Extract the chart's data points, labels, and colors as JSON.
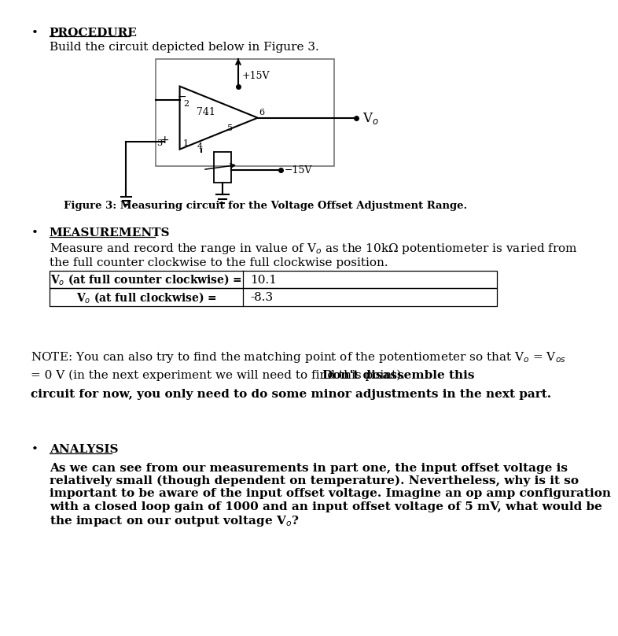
{
  "bg_color": "#ffffff",
  "text_color": "#000000",
  "page_width": 8.45,
  "page_height": 10.24,
  "sections": {
    "procedure_title": "PROCEDURE",
    "procedure_body": "Build the circuit depicted below in Figure 3.",
    "figure_caption": "Figure 3: Measuring circuit for the Voltage Offset Adjustment Range.",
    "measurements_title": "MEASUREMENTS",
    "measurements_body_line1": "Measure and record the range in value of V",
    "measurements_body_line2": "the full counter clockwise to the full clockwise position.",
    "table_row1_label": "Vₒ (at full counter clockwise) =",
    "table_row1_value": "10.1",
    "table_row2_label": "Vₒ (at full clockwise) =",
    "table_row2_value": "-8.3",
    "note_normal": "NOTE: You can also try to find the matching point of the potentiometer so that V",
    "note_normal2": "= 0 V (in the next experiment we will need to find this point).",
    "note_bold": "Don't disassemble this circuit for now, you only need to do some minor adjustments in the next part.",
    "analysis_title": "ANALYSIS",
    "analysis_body": "As we can see from our measurements in part one, the input offset voltage is\nrelatively small (though dependent on temperature). Nevertheless, why is it so\nimportant to be aware of the input offset voltage. Imagine an op amp configuration\nwith a closed loop gain of 1000 and an input offset voltage of 5 mV, what would be\nthe impact on our output voltage V"
  }
}
